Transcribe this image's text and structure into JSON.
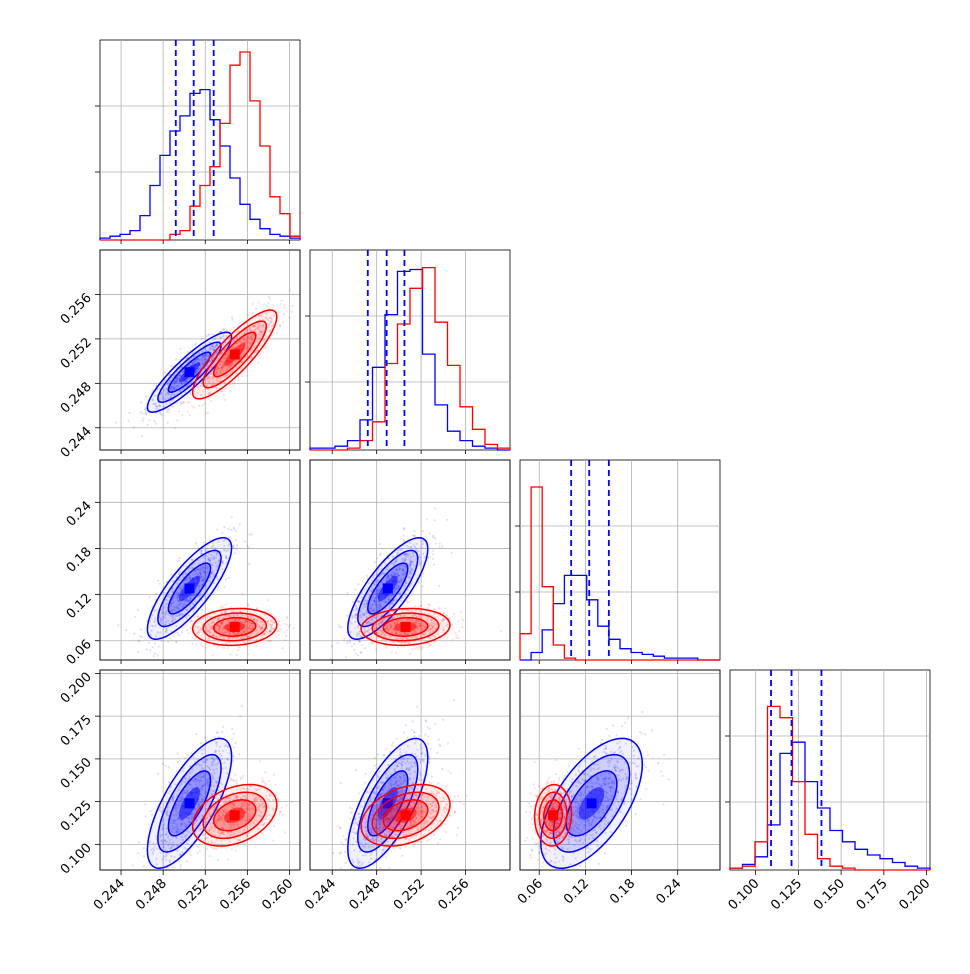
{
  "chart_data": {
    "type": "corner",
    "grid": true,
    "legend": "none",
    "colors": {
      "series_a": "#0000ff",
      "series_b": "#ff0000"
    },
    "axes": [
      {
        "range": [
          0.242,
          0.261
        ],
        "ticks": [
          "0.244",
          "0.248",
          "0.252",
          "0.256",
          "0.260"
        ],
        "tick_values": [
          0.244,
          0.248,
          0.252,
          0.256,
          0.26
        ]
      },
      {
        "range": [
          0.242,
          0.26
        ],
        "ticks": [
          "0.244",
          "0.248",
          "0.252",
          "0.256"
        ],
        "tick_values": [
          0.244,
          0.248,
          0.252,
          0.256
        ]
      },
      {
        "range": [
          0.035,
          0.295
        ],
        "ticks": [
          "0.06",
          "0.12",
          "0.18",
          "0.24"
        ],
        "tick_values": [
          0.06,
          0.12,
          0.18,
          0.24
        ]
      },
      {
        "range": [
          0.085,
          0.202
        ],
        "ticks": [
          "0.100",
          "0.125",
          "0.150",
          "0.175",
          "0.200"
        ],
        "tick_values": [
          0.1,
          0.125,
          0.15,
          0.175,
          0.2
        ]
      }
    ],
    "quantile_lines": [
      [
        0.2492,
        0.2509,
        0.2528
      ],
      [
        0.2472,
        0.2489,
        0.2505
      ],
      [
        0.1015,
        0.125,
        0.1505
      ],
      [
        0.109,
        0.121,
        0.1385
      ]
    ],
    "histograms": [
      {
        "bins": [
          0.242,
          0.244,
          0.246,
          0.248,
          0.25,
          0.252,
          0.254,
          0.256,
          0.258,
          0.26
        ],
        "series": [
          {
            "name": "",
            "values": [
              0.01,
              0.02,
              0.03,
              0.05,
              0.13,
              0.29,
              0.45,
              0.58,
              0.66,
              0.78,
              0.8,
              0.64,
              0.5,
              0.33,
              0.19,
              0.11,
              0.06,
              0.03,
              0.02,
              0.01
            ]
          },
          {
            "name": "",
            "values": [
              0,
              0,
              0,
              0,
              0,
              0,
              0,
              0.03,
              0.05,
              0.18,
              0.29,
              0.39,
              0.62,
              0.93,
              1.0,
              0.74,
              0.5,
              0.23,
              0.14,
              0.02
            ]
          }
        ]
      },
      {
        "series": [
          {
            "name": "",
            "values": [
              0.01,
              0.01,
              0.02,
              0.05,
              0.16,
              0.44,
              0.72,
              0.95,
              0.96,
              0.51,
              0.24,
              0.1,
              0.05,
              0.02,
              0.01,
              0
            ]
          },
          {
            "name": "",
            "values": [
              0,
              0,
              0,
              0.01,
              0.05,
              0.15,
              0.46,
              0.67,
              0.86,
              0.97,
              0.68,
              0.45,
              0.23,
              0.11,
              0.03,
              0.01
            ]
          }
        ]
      },
      {
        "series": [
          {
            "name": "",
            "values": [
              0,
              0.04,
              0.16,
              0.3,
              0.45,
              0.45,
              0.32,
              0.18,
              0.11,
              0.06,
              0.04,
              0.03,
              0.02,
              0.01,
              0.01,
              0.01,
              0,
              0
            ]
          },
          {
            "name": "",
            "values": [
              0.14,
              0.92,
              0.39,
              0.08,
              0.01,
              0,
              0,
              0,
              0,
              0,
              0,
              0,
              0,
              0,
              0,
              0,
              0,
              0
            ]
          }
        ]
      },
      {
        "series": [
          {
            "name": "",
            "values": [
              0.01,
              0.03,
              0.07,
              0.24,
              0.62,
              0.68,
              0.47,
              0.33,
              0.21,
              0.15,
              0.11,
              0.08,
              0.06,
              0.04,
              0.02,
              0.01
            ]
          },
          {
            "name": "",
            "values": [
              0.01,
              0.02,
              0.15,
              0.87,
              0.81,
              0.47,
              0.19,
              0.06,
              0.02,
              0.01,
              0,
              0,
              0,
              0,
              0,
              0
            ]
          }
        ]
      }
    ],
    "series_params": [
      {
        "name": "",
        "means": [
          0.2505,
          0.249,
          0.128,
          0.124
        ],
        "stds": [
          0.002,
          0.0018,
          0.033,
          0.019
        ]
      },
      {
        "name": "",
        "means": [
          0.2548,
          0.2506,
          0.078,
          0.117
        ],
        "stds": [
          0.002,
          0.002,
          0.012,
          0.009
        ]
      }
    ]
  }
}
